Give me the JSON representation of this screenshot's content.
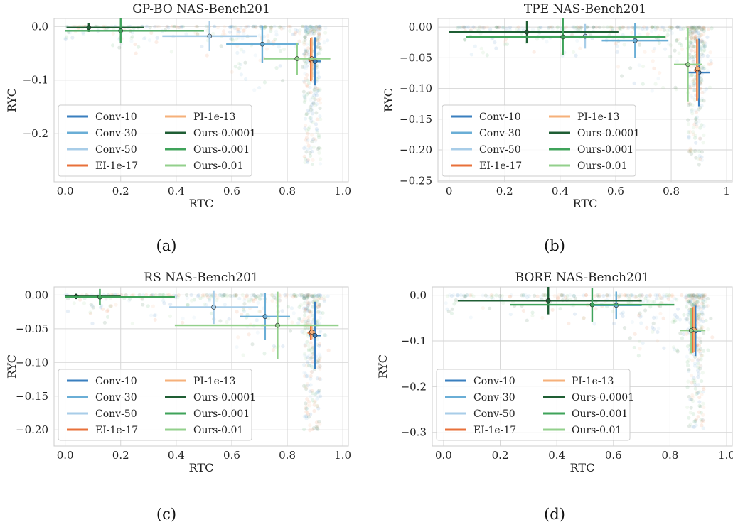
{
  "figure": {
    "captions": [
      "(a)",
      "(b)",
      "(c)",
      "(d)"
    ]
  },
  "legend": [
    {
      "name": "Conv-10",
      "color": "#3a7fbf"
    },
    {
      "name": "Conv-30",
      "color": "#6aaed6"
    },
    {
      "name": "Conv-50",
      "color": "#a8cde8"
    },
    {
      "name": "EI-1e-17",
      "color": "#e8703a"
    },
    {
      "name": "PI-1e-13",
      "color": "#f6b07a"
    },
    {
      "name": "Ours-0.0001",
      "color": "#1f5e34"
    },
    {
      "name": "Ours-0.001",
      "color": "#3fa35a"
    },
    {
      "name": "Ours-0.01",
      "color": "#93d08c"
    }
  ],
  "chart_data": [
    {
      "type": "scatter",
      "title": "GP-BO NAS-Bench201",
      "xlabel": "RTC",
      "ylabel": "RYC",
      "xlim": [
        -0.04,
        1.02
      ],
      "ylim": [
        -0.29,
        0.015
      ],
      "xticks": [
        0.0,
        0.2,
        0.4,
        0.6,
        0.8,
        1.0
      ],
      "xtick_labels": [
        "0.0",
        "0.2",
        "0.4",
        "0.6",
        "0.8",
        "1.0"
      ],
      "yticks": [
        0.0,
        -0.1,
        -0.2
      ],
      "ytick_labels": [
        "0.0",
        "−0.1",
        "−0.2"
      ],
      "grid": true,
      "legend_position": "lower-left",
      "series": [
        {
          "name": "Conv-10",
          "x": 0.9,
          "y": -0.065,
          "xerr": [
            0.02,
            0.02
          ],
          "yerr": [
            0.045,
            0.045
          ]
        },
        {
          "name": "Conv-30",
          "x": 0.71,
          "y": -0.033,
          "xerr": [
            0.13,
            0.13
          ],
          "yerr": [
            0.035,
            0.035
          ]
        },
        {
          "name": "Conv-50",
          "x": 0.52,
          "y": -0.018,
          "xerr": [
            0.17,
            0.17
          ],
          "yerr": [
            0.028,
            0.028
          ]
        },
        {
          "name": "EI-1e-17",
          "x": 0.885,
          "y": -0.062,
          "xerr": [
            0.01,
            0.01
          ],
          "yerr": [
            0.04,
            0.04
          ]
        },
        {
          "name": "PI-1e-13",
          "x": 0.888,
          "y": -0.06,
          "xerr": [
            0.01,
            0.01
          ],
          "yerr": [
            0.04,
            0.04
          ]
        },
        {
          "name": "Ours-0.0001",
          "x": 0.085,
          "y": -0.002,
          "xerr": [
            0.08,
            0.2
          ],
          "yerr": [
            0.008,
            0.008
          ]
        },
        {
          "name": "Ours-0.001",
          "x": 0.2,
          "y": -0.008,
          "xerr": [
            0.2,
            0.3
          ],
          "yerr": [
            0.023,
            0.023
          ]
        },
        {
          "name": "Ours-0.01",
          "x": 0.835,
          "y": -0.06,
          "xerr": [
            0.12,
            0.12
          ],
          "yerr": [
            0.03,
            0.03
          ]
        }
      ]
    },
    {
      "type": "scatter",
      "title": "TPE NAS-Bench201",
      "xlabel": "RTC",
      "ylabel": "RYC",
      "xlim": [
        -0.04,
        1.02
      ],
      "ylim": [
        -0.252,
        0.014
      ],
      "xticks": [
        0.0,
        0.2,
        0.4,
        0.6,
        0.8,
        1.0
      ],
      "xtick_labels": [
        "0",
        "0.2",
        "0.4",
        "0.6",
        "0.8",
        "1"
      ],
      "yticks": [
        0.0,
        -0.05,
        -0.1,
        -0.15,
        -0.2,
        -0.25
      ],
      "ytick_labels": [
        "0.00",
        "−0.05",
        "−0.10",
        "−0.15",
        "−0.20",
        "−0.25"
      ],
      "grid": true,
      "legend_position": "lower-left",
      "series": [
        {
          "name": "Conv-10",
          "x": 0.9,
          "y": -0.074,
          "xerr": [
            0.04,
            0.04
          ],
          "yerr": [
            0.055,
            0.055
          ]
        },
        {
          "name": "Conv-30",
          "x": 0.67,
          "y": -0.022,
          "xerr": [
            0.12,
            0.12
          ],
          "yerr": [
            0.028,
            0.028
          ]
        },
        {
          "name": "Conv-50",
          "x": 0.49,
          "y": -0.015,
          "xerr": [
            0.17,
            0.17
          ],
          "yerr": [
            0.02,
            0.02
          ]
        },
        {
          "name": "EI-1e-17",
          "x": 0.893,
          "y": -0.07,
          "xerr": [
            0.01,
            0.01
          ],
          "yerr": [
            0.05,
            0.05
          ]
        },
        {
          "name": "PI-1e-13",
          "x": 0.895,
          "y": -0.068,
          "xerr": [
            0.01,
            0.01
          ],
          "yerr": [
            0.048,
            0.048
          ]
        },
        {
          "name": "Ours-0.0001",
          "x": 0.28,
          "y": -0.008,
          "xerr": [
            0.28,
            0.33
          ],
          "yerr": [
            0.018,
            0.018
          ]
        },
        {
          "name": "Ours-0.001",
          "x": 0.41,
          "y": -0.016,
          "xerr": [
            0.35,
            0.37
          ],
          "yerr": [
            0.03,
            0.03
          ]
        },
        {
          "name": "Ours-0.01",
          "x": 0.86,
          "y": -0.061,
          "xerr": [
            0.05,
            0.05
          ],
          "yerr": [
            0.06,
            0.06
          ]
        }
      ]
    },
    {
      "type": "scatter",
      "title": "RS NAS-Bench201",
      "xlabel": "RTC",
      "ylabel": "RYC",
      "xlim": [
        -0.04,
        1.02
      ],
      "ylim": [
        -0.224,
        0.012
      ],
      "xticks": [
        0.0,
        0.2,
        0.4,
        0.6,
        0.8,
        1.0
      ],
      "xtick_labels": [
        "0.0",
        "0.2",
        "0.4",
        "0.6",
        "0.8",
        "1.0"
      ],
      "yticks": [
        0.0,
        -0.05,
        -0.1,
        -0.15,
        -0.2
      ],
      "ytick_labels": [
        "0.00",
        "−0.05",
        "−0.10",
        "−0.15",
        "−0.20"
      ],
      "grid": true,
      "legend_position": "lower-left",
      "series": [
        {
          "name": "Conv-10",
          "x": 0.9,
          "y": -0.06,
          "xerr": [
            0.02,
            0.02
          ],
          "yerr": [
            0.05,
            0.05
          ]
        },
        {
          "name": "Conv-30",
          "x": 0.72,
          "y": -0.032,
          "xerr": [
            0.09,
            0.09
          ],
          "yerr": [
            0.035,
            0.035
          ]
        },
        {
          "name": "Conv-50",
          "x": 0.535,
          "y": -0.018,
          "xerr": [
            0.16,
            0.16
          ],
          "yerr": [
            0.025,
            0.025
          ]
        },
        {
          "name": "EI-1e-17",
          "x": 0.885,
          "y": -0.056,
          "xerr": [
            0.012,
            0.012
          ],
          "yerr": [
            0.01,
            0.01
          ]
        },
        {
          "name": "PI-1e-13",
          "x": 0.888,
          "y": -0.055,
          "xerr": [
            0.012,
            0.012
          ],
          "yerr": [
            0.01,
            0.01
          ]
        },
        {
          "name": "Ours-0.0001",
          "x": 0.04,
          "y": -0.002,
          "xerr": [
            0.04,
            0.16
          ],
          "yerr": [
            0.004,
            0.004
          ]
        },
        {
          "name": "Ours-0.001",
          "x": 0.125,
          "y": -0.003,
          "xerr": [
            0.125,
            0.27
          ],
          "yerr": [
            0.012,
            0.012
          ]
        },
        {
          "name": "Ours-0.01",
          "x": 0.765,
          "y": -0.045,
          "xerr": [
            0.37,
            0.22
          ],
          "yerr": [
            0.05,
            0.05
          ]
        }
      ]
    },
    {
      "type": "scatter",
      "title": "BORE NAS-Bench201",
      "xlabel": "RTC",
      "ylabel": "RYC",
      "xlim": [
        -0.04,
        1.02
      ],
      "ylim": [
        -0.33,
        0.018
      ],
      "xticks": [
        0.0,
        0.2,
        0.4,
        0.6,
        0.8,
        1.0
      ],
      "xtick_labels": [
        "0.0",
        "0.2",
        "0.4",
        "0.6",
        "0.8",
        "1.0"
      ],
      "yticks": [
        0.0,
        -0.1,
        -0.2,
        -0.3
      ],
      "ytick_labels": [
        "0.0",
        "−0.1",
        "−0.2",
        "−0.3"
      ],
      "grid": true,
      "legend_position": "lower-left",
      "series": [
        {
          "name": "Conv-10",
          "x": 0.89,
          "y": -0.078,
          "xerr": [
            0.02,
            0.02
          ],
          "yerr": [
            0.055,
            0.055
          ]
        },
        {
          "name": "Conv-30",
          "x": 0.61,
          "y": -0.022,
          "xerr": [
            0.09,
            0.09
          ],
          "yerr": [
            0.03,
            0.03
          ]
        },
        {
          "name": "Conv-50",
          "x": 0.37,
          "y": -0.012,
          "xerr": [
            0.14,
            0.14
          ],
          "yerr": [
            0.018,
            0.018
          ]
        },
        {
          "name": "EI-1e-17",
          "x": 0.88,
          "y": -0.076,
          "xerr": [
            0.012,
            0.012
          ],
          "yerr": [
            0.05,
            0.05
          ]
        },
        {
          "name": "PI-1e-13",
          "x": 0.885,
          "y": -0.075,
          "xerr": [
            0.012,
            0.012
          ],
          "yerr": [
            0.05,
            0.05
          ]
        },
        {
          "name": "Ours-0.0001",
          "x": 0.37,
          "y": -0.012,
          "xerr": [
            0.32,
            0.33
          ],
          "yerr": [
            0.03,
            0.03
          ]
        },
        {
          "name": "Ours-0.001",
          "x": 0.525,
          "y": -0.021,
          "xerr": [
            0.29,
            0.29
          ],
          "yerr": [
            0.037,
            0.037
          ]
        },
        {
          "name": "Ours-0.01",
          "x": 0.875,
          "y": -0.077,
          "xerr": [
            0.04,
            0.05
          ],
          "yerr": [
            0.05,
            0.05
          ]
        }
      ]
    }
  ]
}
